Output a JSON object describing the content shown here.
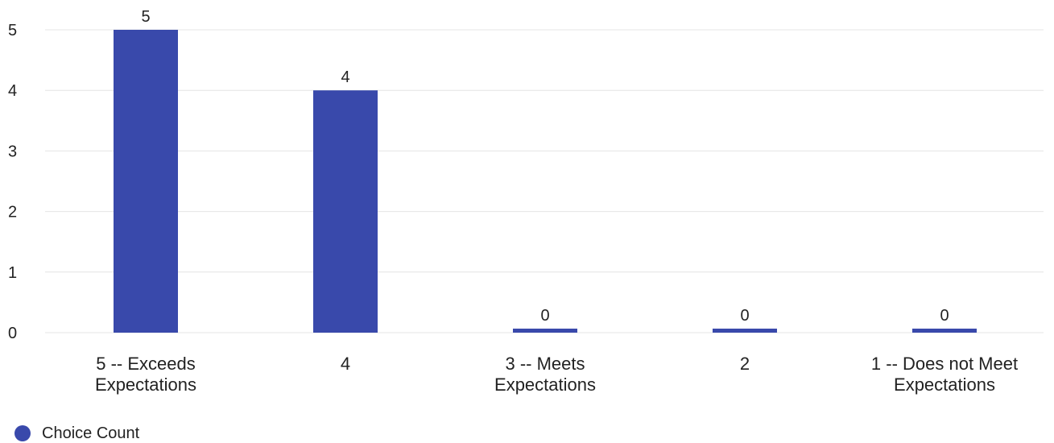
{
  "chart_data": {
    "type": "bar",
    "categories": [
      [
        "5 -- Exceeds",
        "Expectations"
      ],
      [
        "4"
      ],
      [
        "3 -- Meets",
        "Expectations"
      ],
      [
        "2"
      ],
      [
        "1 -- Does not Meet",
        "Expectations"
      ]
    ],
    "series": [
      {
        "name": "Choice Count",
        "values": [
          5,
          4,
          0,
          0,
          0
        ],
        "color": "#3949ab"
      }
    ],
    "ylim": [
      0,
      5
    ],
    "yticks": [
      "0",
      "1",
      "2",
      "3",
      "4",
      "5"
    ],
    "data_labels": [
      "5",
      "4",
      "0",
      "0",
      "0"
    ],
    "grid": true,
    "legend_position": "bottom-left",
    "gridline_color": "#e4e4e4"
  },
  "legend": {
    "label": "Choice Count"
  }
}
